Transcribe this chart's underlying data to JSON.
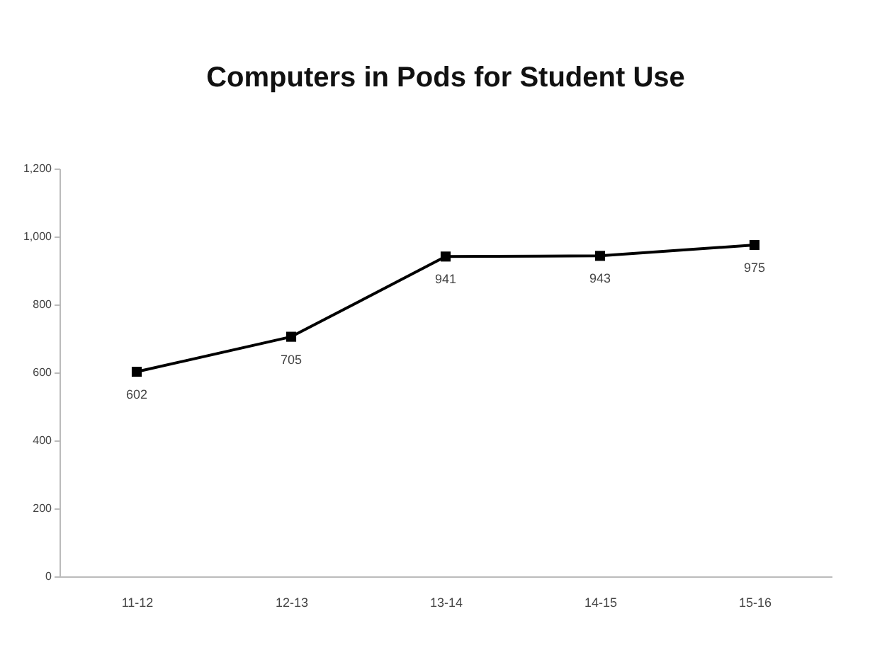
{
  "chart_data": {
    "type": "line",
    "title": "Computers in Pods for Student Use",
    "categories": [
      "11-12",
      "12-13",
      "13-14",
      "14-15",
      "15-16"
    ],
    "values": [
      602,
      705,
      941,
      943,
      975
    ],
    "color": "#000000",
    "marker": "square",
    "line_style": "solid",
    "data_labels": true,
    "grid": false,
    "ylim": [
      0,
      1200
    ],
    "yticks": [
      0,
      200,
      400,
      600,
      800,
      {
        "value": 1000,
        "label": "1,000"
      },
      {
        "value": 1200,
        "label": "1,200"
      }
    ]
  }
}
